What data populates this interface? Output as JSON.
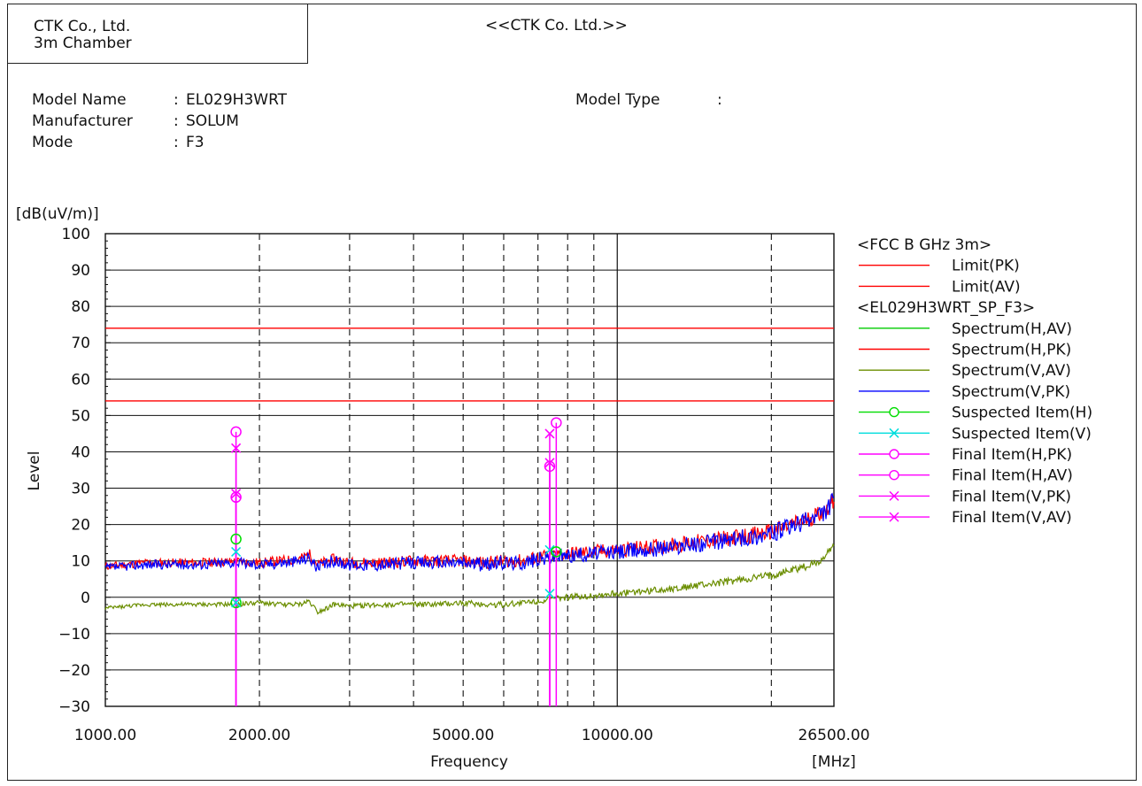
{
  "header": {
    "company_lines": [
      "CTK Co., Ltd.",
      "3m Chamber"
    ],
    "title": "<<CTK Co. Ltd.>>"
  },
  "info": {
    "rows": [
      {
        "label": "Model Name",
        "value": "EL029H3WRT"
      },
      {
        "label": "Manufacturer",
        "value": "SOLUM"
      },
      {
        "label": "Mode",
        "value": "F3"
      }
    ],
    "model_type_label": "Model Type",
    "model_type_value": "",
    "separator": ":"
  },
  "chart_data": {
    "type": "line",
    "title": "",
    "xlabel": "Frequency",
    "xunit": "[MHz]",
    "ylabel": "Level",
    "yunit": "[dB(uV/m)]",
    "x_scale": "log",
    "xlim": [
      1000,
      26500
    ],
    "ylim": [
      -30,
      100
    ],
    "x_tick_labels": [
      "1000.00",
      "2000.00",
      "5000.00",
      "10000.00",
      "26500.00"
    ],
    "x_tick_values": [
      1000,
      2000,
      5000,
      10000,
      26500
    ],
    "y_ticks": [
      100,
      90,
      80,
      70,
      60,
      50,
      40,
      30,
      20,
      10,
      0,
      -10,
      -20,
      -30
    ],
    "major_x_gridlines": [
      10000
    ],
    "minor_x_gridlines": [
      2000,
      3000,
      4000,
      5000,
      6000,
      7000,
      8000,
      9000,
      20000
    ],
    "grid": true,
    "legend_position": "right",
    "limits": [
      {
        "name": "Limit(PK)",
        "value": 74,
        "color": "#ff0000"
      },
      {
        "name": "Limit(AV)",
        "value": 54,
        "color": "#ff0000"
      }
    ],
    "legend_groups": [
      {
        "heading": "<FCC B GHz 3m>",
        "items": [
          {
            "name": "Limit(PK)",
            "color": "#ff0000",
            "marker": "line"
          },
          {
            "name": "Limit(AV)",
            "color": "#ff0000",
            "marker": "line"
          }
        ]
      },
      {
        "heading": "<EL029H3WRT_SP_F3>",
        "items": [
          {
            "name": "Spectrum(H,AV)",
            "color": "#00cc00",
            "marker": "line"
          },
          {
            "name": "Spectrum(H,PK)",
            "color": "#ff0000",
            "marker": "line"
          },
          {
            "name": "Spectrum(V,AV)",
            "color": "#6b8e00",
            "marker": "line"
          },
          {
            "name": "Spectrum(V,PK)",
            "color": "#0000ff",
            "marker": "line"
          },
          {
            "name": "Suspected Item(H)",
            "color": "#00dd00",
            "marker": "circle"
          },
          {
            "name": "Suspected Item(V)",
            "color": "#00dddd",
            "marker": "x"
          },
          {
            "name": "Final Item(H,PK)",
            "color": "#ff00ff",
            "marker": "circle"
          },
          {
            "name": "Final Item(H,AV)",
            "color": "#ff00ff",
            "marker": "circle"
          },
          {
            "name": "Final Item(V,PK)",
            "color": "#ff00ff",
            "marker": "x"
          },
          {
            "name": "Final Item(V,AV)",
            "color": "#ff00ff",
            "marker": "x"
          }
        ]
      }
    ],
    "series": [
      {
        "name": "Spectrum(H,PK)",
        "color": "#ff0000",
        "x": [
          1000,
          1200,
          1500,
          1800,
          2000,
          2200,
          2400,
          2500,
          2600,
          2800,
          3000,
          3500,
          4000,
          4500,
          5000,
          5500,
          6000,
          6500,
          7000,
          7500,
          8000,
          9000,
          10000,
          12000,
          14000,
          16000,
          18000,
          20000,
          22000,
          24000,
          25500,
          26500
        ],
        "y": [
          8.5,
          9.5,
          9.5,
          9.8,
          9.5,
          10,
          10.5,
          12,
          9,
          10.5,
          9.5,
          9.5,
          10,
          10,
          10,
          9.5,
          10,
          10,
          11,
          11.5,
          12,
          12.5,
          13,
          14,
          15,
          16,
          17,
          18,
          20,
          22,
          24,
          27
        ]
      },
      {
        "name": "Spectrum(V,PK)",
        "color": "#0000ff",
        "x": [
          1000,
          1200,
          1500,
          1800,
          2000,
          2200,
          2400,
          2500,
          2600,
          2800,
          3000,
          3500,
          4000,
          4500,
          5000,
          5500,
          6000,
          6500,
          7000,
          7500,
          8000,
          9000,
          10000,
          12000,
          14000,
          16000,
          18000,
          20000,
          22000,
          24000,
          25500,
          26500
        ],
        "y": [
          8,
          9,
          9,
          9.5,
          9,
          9.5,
          10,
          11,
          8,
          10,
          9,
          9,
          9.5,
          9.5,
          9.5,
          9,
          9.5,
          9.5,
          10.5,
          11,
          11.5,
          12,
          12.5,
          13.5,
          14.5,
          15.5,
          16.5,
          17.5,
          19.5,
          21.5,
          23.5,
          27
        ]
      },
      {
        "name": "Spectrum(V,AV)",
        "color": "#6b8e00",
        "x": [
          1000,
          1200,
          1500,
          1800,
          2000,
          2200,
          2400,
          2500,
          2600,
          2800,
          3000,
          3500,
          4000,
          4500,
          5000,
          5500,
          6000,
          6500,
          7000,
          7500,
          8000,
          9000,
          10000,
          12000,
          14000,
          16000,
          18000,
          20000,
          22000,
          24000,
          25500,
          26500
        ],
        "y": [
          -3,
          -2,
          -2,
          -2,
          -1.5,
          -2,
          -2,
          -1,
          -4,
          -2,
          -2.5,
          -2,
          -2,
          -2,
          -1.5,
          -2,
          -2,
          -1.5,
          -1,
          -0.5,
          0,
          0.5,
          1,
          2,
          3,
          4,
          5,
          6,
          7.5,
          9,
          11,
          15
        ]
      }
    ],
    "suspected_items": [
      {
        "series": "Suspected Item(H)",
        "x": 1800,
        "y": 16,
        "color": "#00dd00",
        "marker": "circle"
      },
      {
        "series": "Suspected Item(H)",
        "x": 1800,
        "y": -1.5,
        "color": "#00dd00",
        "marker": "circle"
      },
      {
        "series": "Suspected Item(V)",
        "x": 1800,
        "y": 12.5,
        "color": "#00dddd",
        "marker": "x"
      },
      {
        "series": "Suspected Item(V)",
        "x": 1800,
        "y": -1.5,
        "color": "#00dddd",
        "marker": "x"
      },
      {
        "series": "Suspected Item(V)",
        "x": 7380,
        "y": 13,
        "color": "#00dddd",
        "marker": "x"
      },
      {
        "series": "Suspected Item(V)",
        "x": 7380,
        "y": 1,
        "color": "#00dddd",
        "marker": "x"
      },
      {
        "series": "Suspected Item(H)",
        "x": 7600,
        "y": 12.5,
        "color": "#00dd00",
        "marker": "circle"
      }
    ],
    "final_items": [
      {
        "series": "Final Item(H,PK)",
        "x": 1800,
        "y": 45.5,
        "color": "#ff00ff",
        "marker": "circle"
      },
      {
        "series": "Final Item(V,PK)",
        "x": 1800,
        "y": 41,
        "color": "#ff00ff",
        "marker": "x"
      },
      {
        "series": "Final Item(H,AV)",
        "x": 1800,
        "y": 27.5,
        "color": "#ff00ff",
        "marker": "circle"
      },
      {
        "series": "Final Item(V,AV)",
        "x": 1800,
        "y": 28.5,
        "color": "#ff00ff",
        "marker": "x"
      },
      {
        "series": "Final Item(V,PK)",
        "x": 7380,
        "y": 45,
        "color": "#ff00ff",
        "marker": "x"
      },
      {
        "series": "Final Item(V,AV)",
        "x": 7380,
        "y": 37,
        "color": "#ff00ff",
        "marker": "x"
      },
      {
        "series": "Final Item(H,AV)",
        "x": 7380,
        "y": 36,
        "color": "#ff00ff",
        "marker": "circle"
      },
      {
        "series": "Final Item(H,PK)",
        "x": 7600,
        "y": 48,
        "color": "#ff00ff",
        "marker": "circle"
      }
    ]
  }
}
